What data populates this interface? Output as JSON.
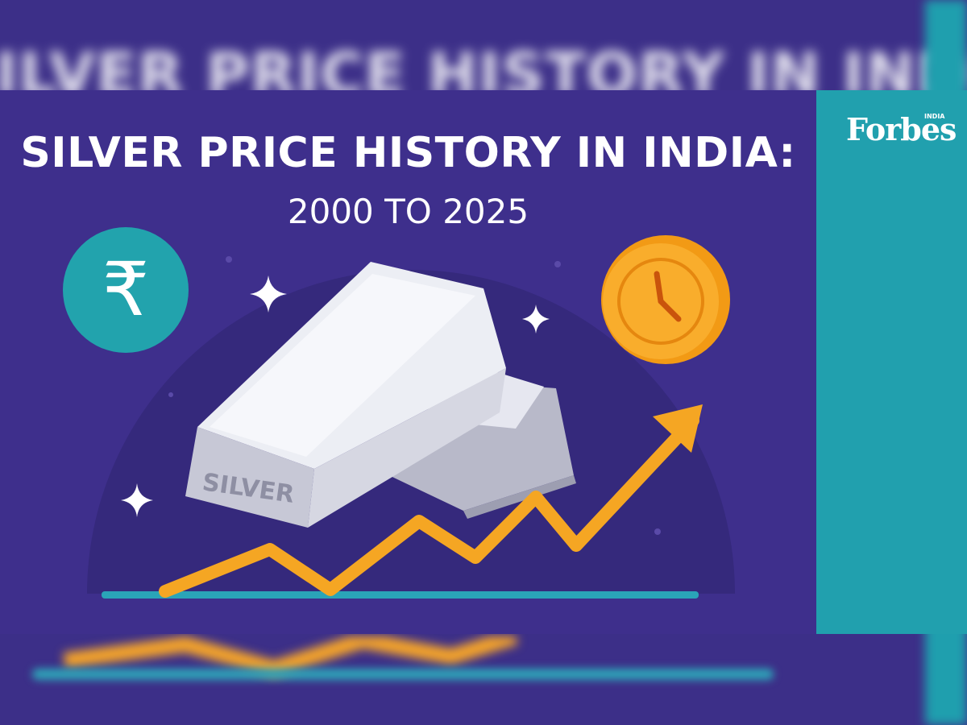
{
  "background": {
    "blurred_title": "SILVER PRICE HISTORY IN INDIA:"
  },
  "header": {
    "title": "SILVER PRICE HISTORY IN INDIA:",
    "subtitle": "2000 TO 2025"
  },
  "brand": {
    "logo_text": "Forbes",
    "logo_small": "INDIA"
  },
  "illustration": {
    "bar_label": "SILVER",
    "currency_symbol": "₹",
    "icons": [
      "rupee-coin-icon",
      "clock-coin-icon",
      "silver-bar-icon",
      "sparkle-icon",
      "trend-arrow-icon"
    ]
  },
  "colors": {
    "background_purple": "#3e2f8c",
    "panel_teal": "#21a0ae",
    "accent_orange": "#f5a623",
    "coin_orange": "#f7a21a",
    "rupee_coin_teal": "#22a3ad",
    "baseline_teal": "#2aa4b8",
    "silver": "#d9dae6"
  }
}
